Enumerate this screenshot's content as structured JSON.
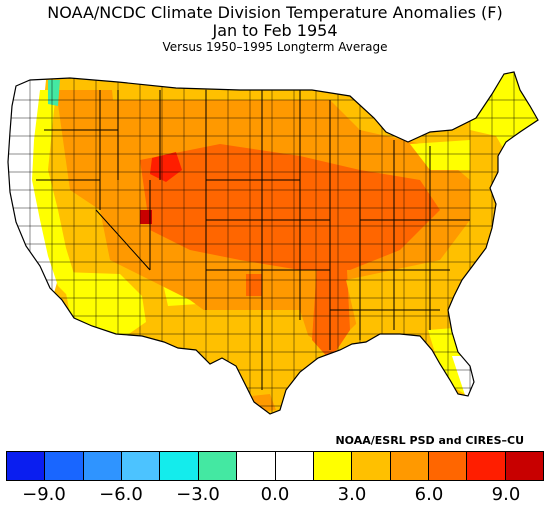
{
  "title": {
    "line1": "NOAA/NCDC Climate Division Temperature Anomalies (F)",
    "line2": "Jan to Feb 1954",
    "line3": "Versus 1950–1995 Longterm Average"
  },
  "credit": "NOAA/ESRL PSD and CIRES–CU",
  "legend": {
    "colors": [
      "#0a1ef0",
      "#1966ff",
      "#2f94ff",
      "#4cc3ff",
      "#14ecec",
      "#44e8a2",
      "#ffffff",
      "#ffffff",
      "#ffff00",
      "#ffc000",
      "#ff9900",
      "#ff6600",
      "#ff1e00",
      "#c80000"
    ],
    "ticks": [
      "−9.0",
      "−6.0",
      "−3.0",
      "0.0",
      "3.0",
      "6.0",
      "9.0"
    ]
  },
  "colors": {
    "yellow": "#ffff00",
    "light_orange": "#ffc000",
    "orange": "#ff9900",
    "dark_orange": "#ff6600",
    "red": "#ff1e00",
    "dark_red": "#c80000",
    "teal": "#44e8a2",
    "white": "#ffffff"
  }
}
